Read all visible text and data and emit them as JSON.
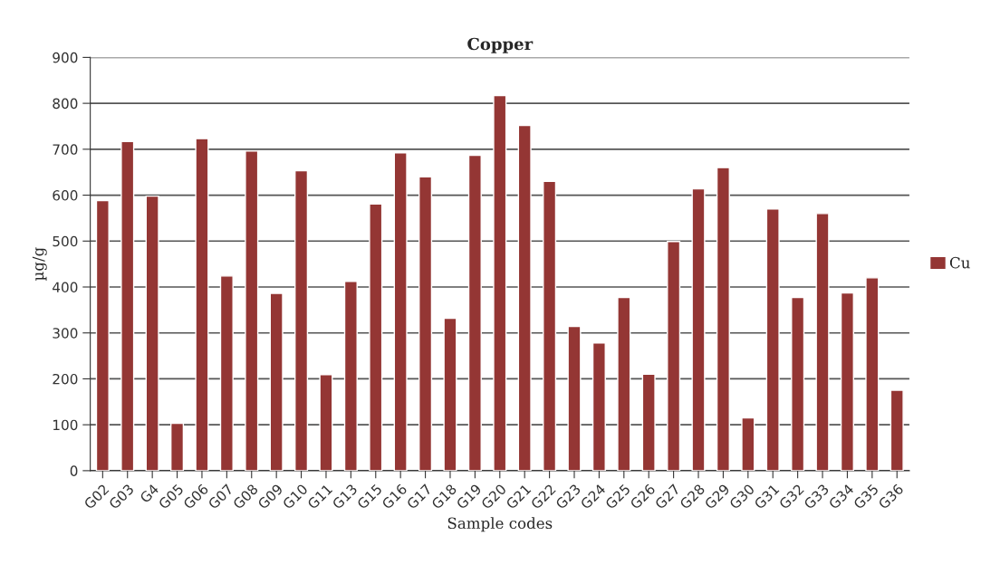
{
  "chart_data": {
    "type": "bar",
    "title": "Copper",
    "xlabel": "Sample codes",
    "ylabel": "µg/g",
    "categories": [
      "G02",
      "G03",
      "G4",
      "G05",
      "G06",
      "G07",
      "G08",
      "G09",
      "G10",
      "G11",
      "G13",
      "G15",
      "G16",
      "G17",
      "G18",
      "G19",
      "G20",
      "G21",
      "G22",
      "G23",
      "G24",
      "G25",
      "G26",
      "G27",
      "G28",
      "G29",
      "G30",
      "G31",
      "G32",
      "G33",
      "G34",
      "G35",
      "G36"
    ],
    "series": [
      {
        "name": "Cu",
        "color": "#943634",
        "values": [
          588,
          717,
          598,
          103,
          723,
          424,
          696,
          386,
          653,
          209,
          412,
          581,
          692,
          640,
          332,
          687,
          817,
          752,
          630,
          314,
          278,
          377,
          210,
          499,
          614,
          660,
          115,
          570,
          377,
          560,
          387,
          420,
          175
        ]
      }
    ],
    "ylim": [
      0,
      900
    ],
    "yticks": [
      0,
      100,
      200,
      300,
      400,
      500,
      600,
      700,
      800,
      900
    ],
    "grid": "y",
    "legend": "right"
  }
}
